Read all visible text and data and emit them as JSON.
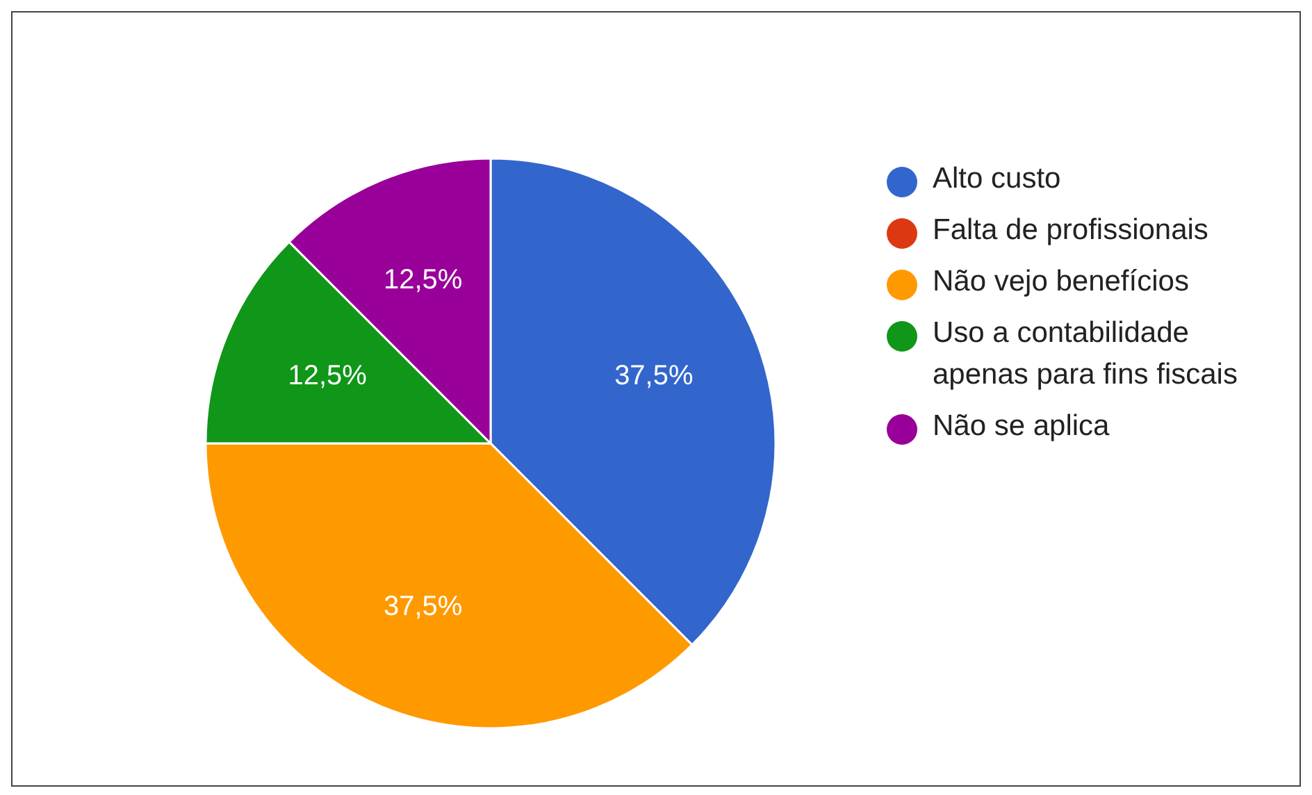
{
  "chart_data": {
    "type": "pie",
    "categories": [
      "Alto custo",
      "Falta de profissionais",
      "Não vejo benefícios",
      "Uso a contabilidade apenas para fins fiscais",
      "Não se aplica"
    ],
    "values": [
      37.5,
      0,
      37.5,
      12.5,
      12.5
    ],
    "colors": [
      "#3366cc",
      "#dc3912",
      "#ff9900",
      "#109618",
      "#990099"
    ],
    "value_labels": [
      "37,5%",
      null,
      "37,5%",
      "12,5%",
      "12,5%"
    ],
    "legend": "right"
  }
}
